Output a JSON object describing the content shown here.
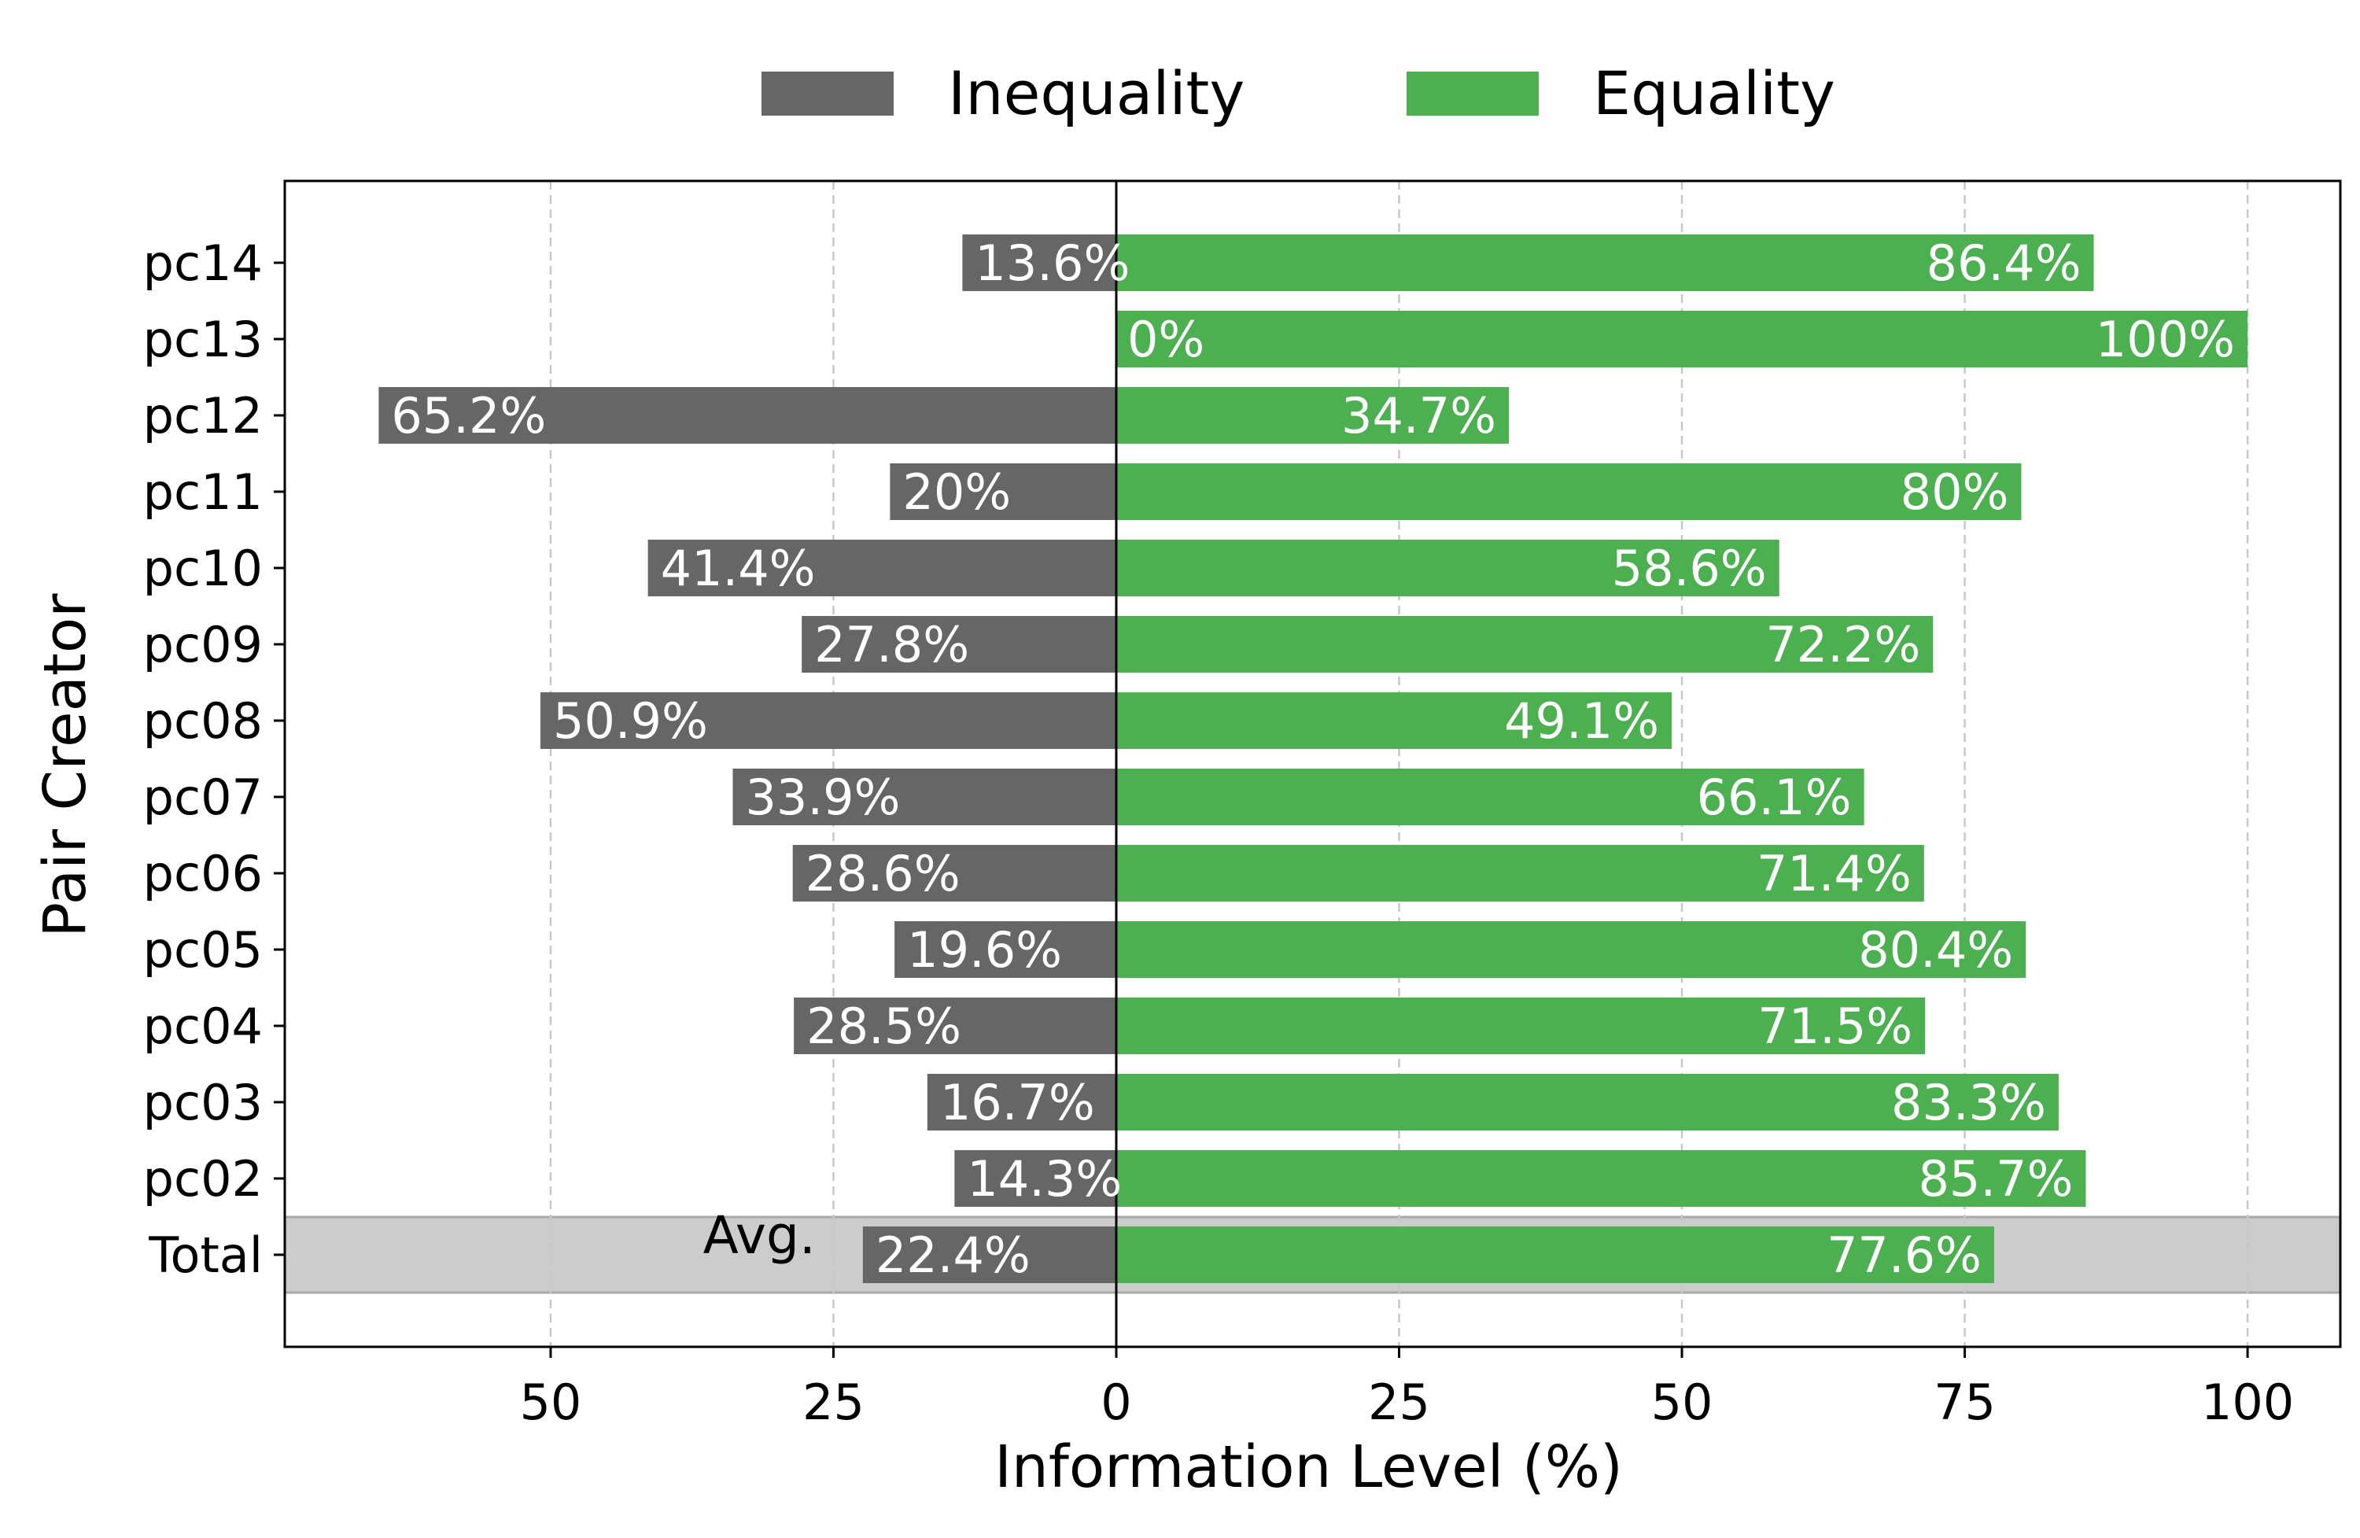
{
  "chart_data": {
    "type": "bar",
    "orientation": "horizontal-diverging",
    "xlabel": "Information Level (%)",
    "ylabel": "Pair Creator",
    "xlim": [
      -73.5,
      108.2
    ],
    "x_ticks": [
      {
        "value": -50,
        "label": "50"
      },
      {
        "value": -25,
        "label": "25"
      },
      {
        "value": 0,
        "label": "0"
      },
      {
        "value": 25,
        "label": "25"
      },
      {
        "value": 50,
        "label": "50"
      },
      {
        "value": 75,
        "label": "75"
      },
      {
        "value": 100,
        "label": "100"
      }
    ],
    "grid": "vertical dashed",
    "legend_position": "top-center",
    "categories": [
      "pc14",
      "pc13",
      "pc12",
      "pc11",
      "pc10",
      "pc09",
      "pc08",
      "pc07",
      "pc06",
      "pc05",
      "pc04",
      "pc03",
      "pc02",
      "Total"
    ],
    "series": [
      {
        "name": "Inequality",
        "color": "#666666",
        "values": [
          13.6,
          0,
          65.2,
          20,
          41.4,
          27.8,
          50.9,
          33.9,
          28.6,
          19.6,
          28.5,
          16.7,
          14.3,
          22.4
        ],
        "labels": [
          "13.6%",
          "0%",
          "65.2%",
          "20%",
          "41.4%",
          "27.8%",
          "50.9%",
          "33.9%",
          "28.6%",
          "19.6%",
          "28.5%",
          "16.7%",
          "14.3%",
          "22.4%"
        ]
      },
      {
        "name": "Equality",
        "color": "#4caf50",
        "values": [
          86.4,
          100,
          34.7,
          80,
          58.6,
          72.2,
          49.1,
          66.1,
          71.4,
          80.4,
          71.5,
          83.3,
          85.7,
          77.6
        ],
        "labels": [
          "86.4%",
          "100%",
          "34.7%",
          "80%",
          "58.6%",
          "72.2%",
          "49.1%",
          "66.1%",
          "71.4%",
          "80.4%",
          "71.5%",
          "83.3%",
          "85.7%",
          "77.6%"
        ]
      }
    ],
    "highlight": {
      "category": "Total",
      "color": "#cccccc",
      "annotation": "Avg."
    }
  }
}
